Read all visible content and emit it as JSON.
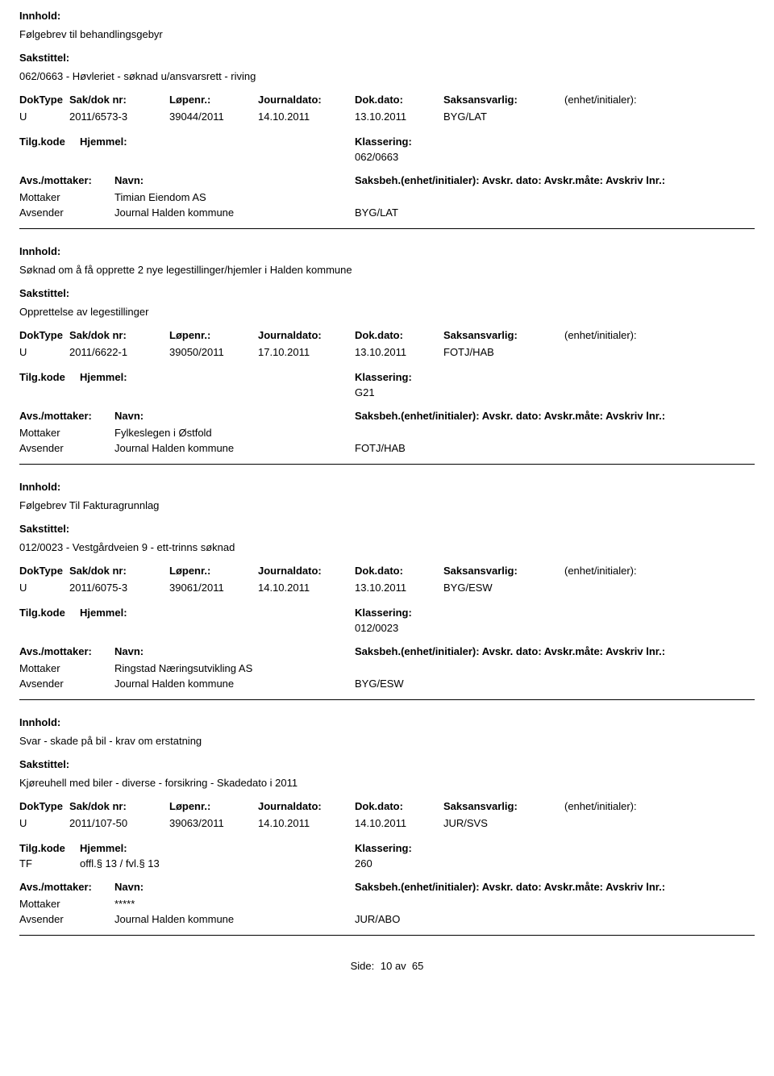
{
  "labels": {
    "innhold": "Innhold:",
    "sakstittel": "Sakstittel:",
    "doktype": "DokType",
    "sakdok": "Sak/dok nr:",
    "lopenr": "Løpenr.:",
    "jdato": "Journaldato:",
    "ddato": "Dok.dato:",
    "saksansvarlig": "Saksansvarlig:",
    "enhet": "(enhet/initialer):",
    "tilgkode": "Tilg.kode",
    "hjemmel": "Hjemmel:",
    "klassering": "Klassering:",
    "avs_mottaker": "Avs./mottaker:",
    "navn": "Navn:",
    "saksbeh_line": "Saksbeh.(enhet/initialer): Avskr. dato:  Avskr.måte:  Avskriv lnr.:",
    "mottaker": "Mottaker",
    "avsender": "Avsender",
    "side": "Side:",
    "av": "av"
  },
  "footer": {
    "page": "10",
    "total": "65"
  },
  "records": [
    {
      "innhold": "Følgebrev til behandlingsgebyr",
      "sakstittel": "062/0663 - Høvleriet - søknad u/ansvarsrett - riving",
      "doktype": "U",
      "sakdok": "2011/6573-3",
      "lopenr": "39044/2011",
      "jdato": "14.10.2011",
      "ddato": "13.10.2011",
      "saksansvarlig": "BYG/LAT",
      "tilgkode": "",
      "hjemmel": "",
      "klassering": "062/0663",
      "mottaker": "Timian Eiendom AS",
      "avsender": "Journal Halden kommune",
      "saksbeh": "BYG/LAT"
    },
    {
      "innhold": "Søknad om å få opprette 2 nye legestillinger/hjemler i Halden kommune",
      "sakstittel": "Opprettelse av legestillinger",
      "doktype": "U",
      "sakdok": "2011/6622-1",
      "lopenr": "39050/2011",
      "jdato": "17.10.2011",
      "ddato": "13.10.2011",
      "saksansvarlig": "FOTJ/HAB",
      "tilgkode": "",
      "hjemmel": "",
      "klassering": "G21",
      "mottaker": "Fylkeslegen i Østfold",
      "avsender": "Journal Halden kommune",
      "saksbeh": "FOTJ/HAB"
    },
    {
      "innhold": "Følgebrev Til Fakturagrunnlag",
      "sakstittel": "012/0023 - Vestgårdveien 9 - ett-trinns søknad",
      "doktype": "U",
      "sakdok": "2011/6075-3",
      "lopenr": "39061/2011",
      "jdato": "14.10.2011",
      "ddato": "13.10.2011",
      "saksansvarlig": "BYG/ESW",
      "tilgkode": "",
      "hjemmel": "",
      "klassering": "012/0023",
      "mottaker": "Ringstad Næringsutvikling AS",
      "avsender": "Journal Halden kommune",
      "saksbeh": "BYG/ESW"
    },
    {
      "innhold": "Svar - skade på bil - krav om erstatning",
      "sakstittel": "Kjøreuhell med biler - diverse - forsikring - Skadedato i 2011",
      "doktype": "U",
      "sakdok": "2011/107-50",
      "lopenr": "39063/2011",
      "jdato": "14.10.2011",
      "ddato": "14.10.2011",
      "saksansvarlig": "JUR/SVS",
      "tilgkode": "TF",
      "hjemmel": "offl.§ 13 / fvl.§ 13",
      "klassering": "260",
      "mottaker": "*****",
      "avsender": "Journal Halden kommune",
      "saksbeh": "JUR/ABO"
    }
  ]
}
